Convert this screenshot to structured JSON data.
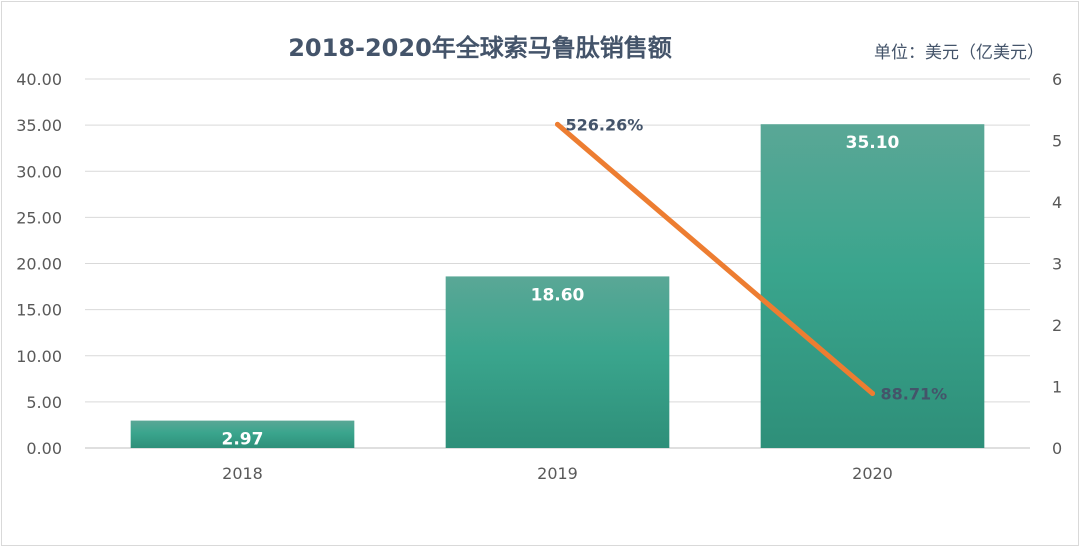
{
  "chart_data": {
    "type": "bar",
    "title": "2018-2020年全球索马鲁肽销售额",
    "unit_label": "单位：美元（亿美元）",
    "categories": [
      "2018",
      "2019",
      "2020"
    ],
    "series": [
      {
        "type": "bar",
        "values": [
          2.97,
          18.6,
          35.1
        ],
        "value_labels": [
          "2.97",
          "18.60",
          "35.10"
        ],
        "color": "#3a9e8a"
      },
      {
        "type": "line",
        "values": [
          null,
          5.2626,
          0.8871
        ],
        "value_labels": [
          "",
          "526.26%",
          "88.71%"
        ],
        "color": "#ed7d31",
        "axis": "right"
      }
    ],
    "y_left": {
      "min": 0,
      "max": 40,
      "step": 5,
      "tick_labels": [
        "0.00",
        "5.00",
        "10.00",
        "15.00",
        "20.00",
        "25.00",
        "30.00",
        "35.00",
        "40.00"
      ]
    },
    "y_right": {
      "min": 0,
      "max": 6,
      "step": 1,
      "tick_labels": [
        "0",
        "1",
        "2",
        "3",
        "4",
        "5",
        "6"
      ]
    },
    "grid": true,
    "legend": "none"
  }
}
